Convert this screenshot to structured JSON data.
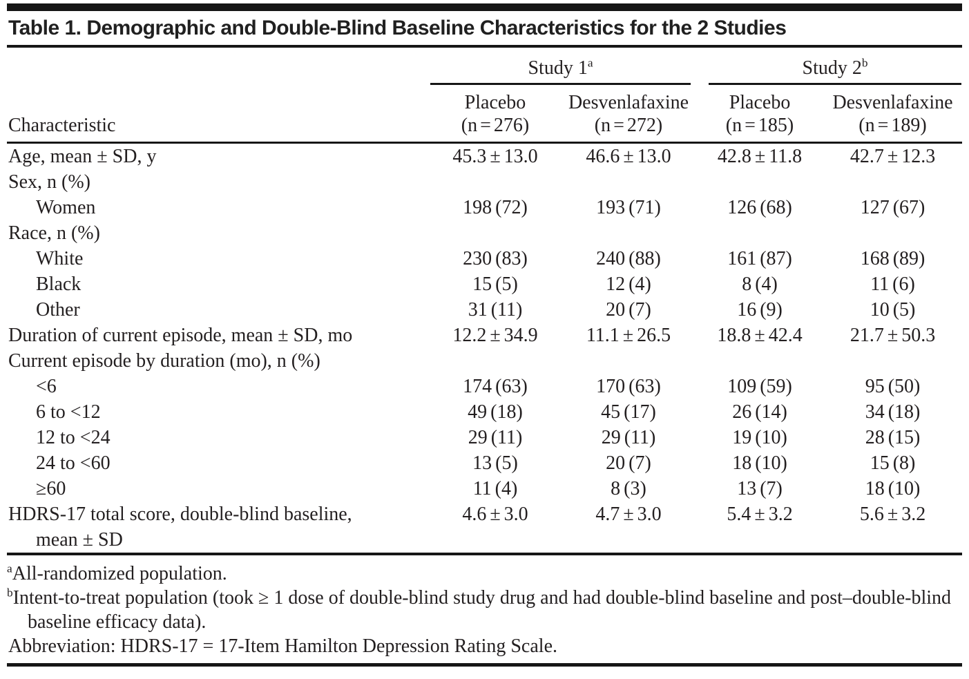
{
  "page": {
    "background": "#ffffff",
    "text_color": "#231f20",
    "rule_color": "#161616"
  },
  "title": "Table 1. Demographic and Double-Blind Baseline Characteristics for the 2 Studies",
  "header": {
    "stub_label": "Characteristic",
    "groups": [
      {
        "label": "Study 1",
        "sup": "a"
      },
      {
        "label": "Study 2",
        "sup": "b"
      }
    ],
    "columns": [
      {
        "drug": "Placebo",
        "n": "(n = 276)"
      },
      {
        "drug": "Desvenlafaxine",
        "n": "(n = 272)"
      },
      {
        "drug": "Placebo",
        "n": "(n = 185)"
      },
      {
        "drug": "Desvenlafaxine",
        "n": "(n = 189)"
      }
    ]
  },
  "table": {
    "rows": [
      {
        "label": "Age, mean ± SD, y",
        "indent": false,
        "values": [
          "45.3 ± 13.0",
          "46.6 ± 13.0",
          "42.8 ± 11.8",
          "42.7 ± 12.3"
        ]
      },
      {
        "label": "Sex, n (%)",
        "indent": false,
        "values": [
          "",
          "",
          "",
          ""
        ]
      },
      {
        "label": "Women",
        "indent": true,
        "values": [
          "198 (72)",
          "193 (71)",
          "126 (68)",
          "127 (67)"
        ]
      },
      {
        "label": "Race, n (%)",
        "indent": false,
        "values": [
          "",
          "",
          "",
          ""
        ]
      },
      {
        "label": "White",
        "indent": true,
        "values": [
          "230 (83)",
          "240 (88)",
          "161 (87)",
          "168 (89)"
        ]
      },
      {
        "label": "Black",
        "indent": true,
        "values": [
          "15 (5)",
          "12 (4)",
          "8 (4)",
          "11 (6)"
        ]
      },
      {
        "label": "Other",
        "indent": true,
        "values": [
          "31 (11)",
          "20 (7)",
          "16 (9)",
          "10 (5)"
        ]
      },
      {
        "label": "Duration of current episode, mean ± SD, mo",
        "indent": false,
        "values": [
          "12.2 ± 34.9",
          "11.1 ± 26.5",
          "18.8 ± 42.4",
          "21.7 ± 50.3"
        ]
      },
      {
        "label": "Current episode by duration (mo), n (%)",
        "indent": false,
        "values": [
          "",
          "",
          "",
          ""
        ]
      },
      {
        "label": "<6",
        "indent": true,
        "values": [
          "174 (63)",
          "170 (63)",
          "109 (59)",
          "95 (50)"
        ]
      },
      {
        "label": "6 to <12",
        "indent": true,
        "values": [
          "49 (18)",
          "45 (17)",
          "26 (14)",
          "34 (18)"
        ]
      },
      {
        "label": "12 to <24",
        "indent": true,
        "values": [
          "29 (11)",
          "29 (11)",
          "19 (10)",
          "28 (15)"
        ]
      },
      {
        "label": "24 to <60",
        "indent": true,
        "values": [
          "13 (5)",
          "20 (7)",
          "18 (10)",
          "15 (8)"
        ]
      },
      {
        "label": "≥60",
        "indent": true,
        "values": [
          "11 (4)",
          "8 (3)",
          "13 (7)",
          "18 (10)"
        ]
      },
      {
        "label": "HDRS-17 total score, double-blind baseline,",
        "label_line2": "mean ± SD",
        "indent": false,
        "values": [
          "4.6 ± 3.0",
          "4.7 ± 3.0",
          "5.4 ± 3.2",
          "5.6 ± 3.2"
        ]
      }
    ]
  },
  "footnotes": [
    {
      "marker": "a",
      "text": "All-randomized population."
    },
    {
      "marker": "b",
      "text": "Intent-to-treat population (took ≥ 1 dose of double-blind study drug and had double-blind baseline and post–double-blind baseline efficacy data)."
    }
  ],
  "abbreviation": "Abbreviation: HDRS-17 = 17-Item Hamilton Depression Rating Scale."
}
